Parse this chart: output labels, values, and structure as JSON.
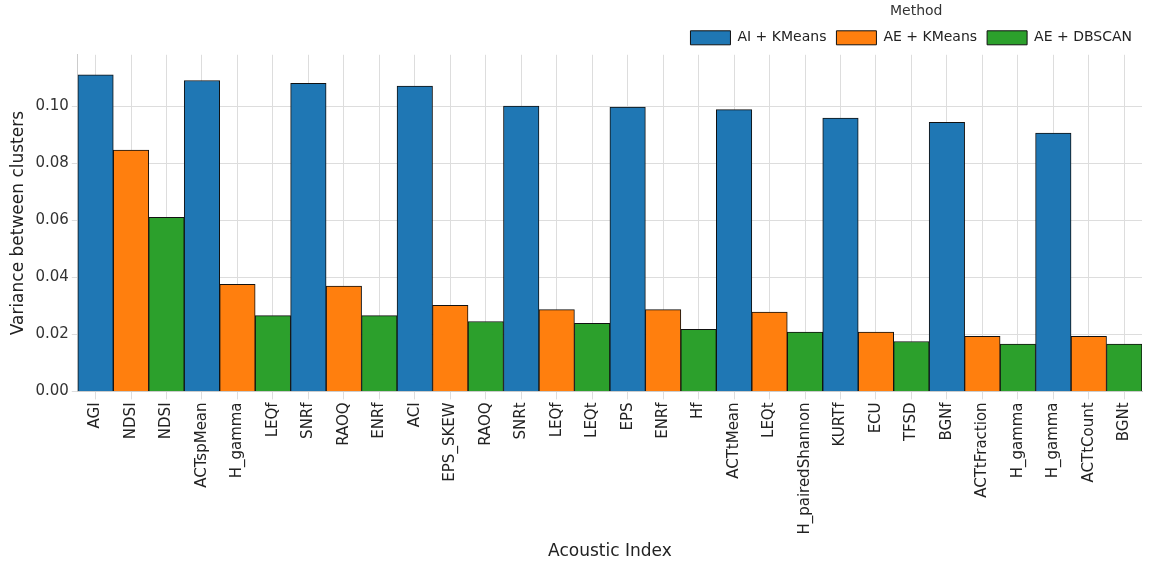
{
  "chart_data": {
    "type": "bar",
    "xlabel": "Acoustic Index",
    "ylabel": "Variance between clusters",
    "legend_title": "Method",
    "categories": [
      "AGI",
      "NDSI",
      "NDSI",
      "ACTspMean",
      "H_gamma",
      "LEQf",
      "SNRf",
      "RAOQ",
      "ENRf",
      "ACI",
      "EPS_SKEW",
      "RAOQ",
      "SNRt",
      "LEQf",
      "LEQt",
      "EPS",
      "ENRf",
      "Hf",
      "ACTtMean",
      "LEQt",
      "H_pairedShannon",
      "KURTf",
      "ECU",
      "TFSD",
      "BGNf",
      "ACTtFraction",
      "H_gamma",
      "H_gamma",
      "ACTtCount",
      "BGNt"
    ],
    "series": [
      {
        "name": "AI + KMeans",
        "color": "#1f77b4",
        "values": [
          0.111,
          null,
          null,
          0.109,
          null,
          null,
          0.108,
          null,
          null,
          0.107,
          null,
          null,
          0.1,
          null,
          null,
          0.0997,
          null,
          null,
          0.0988,
          null,
          null,
          0.0958,
          null,
          null,
          0.0943,
          null,
          null,
          0.0906,
          null,
          null
        ]
      },
      {
        "name": "AE + KMeans",
        "color": "#ff7f0e",
        "values": [
          null,
          0.0846,
          null,
          null,
          0.0375,
          null,
          null,
          0.0369,
          null,
          null,
          0.0302,
          null,
          null,
          0.0287,
          null,
          null,
          0.0287,
          null,
          null,
          0.0278,
          null,
          null,
          0.0208,
          null,
          null,
          0.0193,
          null,
          null,
          0.0193,
          null
        ]
      },
      {
        "name": "AE + DBSCAN",
        "color": "#2ca02c",
        "values": [
          null,
          null,
          0.061,
          null,
          null,
          0.0266,
          null,
          null,
          0.0266,
          null,
          null,
          0.0245,
          null,
          null,
          0.0239,
          null,
          null,
          0.0218,
          null,
          null,
          0.0208,
          null,
          null,
          0.0175,
          null,
          null,
          0.0166,
          null,
          null,
          0.0166
        ]
      }
    ],
    "ylim": [
      0,
      0.118
    ],
    "yticks": [
      {
        "value": 0,
        "label": "0.00"
      },
      {
        "value": 0.02,
        "label": "0.02"
      },
      {
        "value": 0.04,
        "label": "0.04"
      },
      {
        "value": 0.06,
        "label": "0.06"
      },
      {
        "value": 0.08,
        "label": "0.08"
      },
      {
        "value": 0.1,
        "label": "0.10"
      }
    ],
    "grid": true,
    "legend": "top right"
  }
}
